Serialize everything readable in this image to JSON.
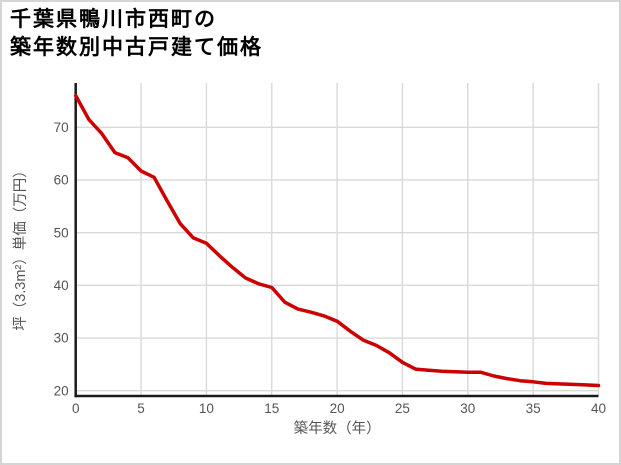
{
  "title": {
    "line1": "千葉県鴨川市西町の",
    "line2": "築年数別中古戸建て価格"
  },
  "chart_data": {
    "type": "line",
    "title": "千葉県鴨川市西町の築年数別中古戸建て価格",
    "xlabel": "築年数（年）",
    "ylabel": "坪（3.3m²）単価（万円）",
    "x": [
      0,
      1,
      2,
      3,
      4,
      5,
      6,
      7,
      8,
      9,
      10,
      11,
      12,
      13,
      14,
      15,
      16,
      17,
      18,
      19,
      20,
      21,
      22,
      23,
      24,
      25,
      26,
      27,
      28,
      29,
      30,
      31,
      32,
      33,
      34,
      35,
      36,
      37,
      38,
      39,
      40
    ],
    "values": [
      76,
      71.5,
      68.8,
      65.2,
      64.2,
      61.7,
      60.5,
      56,
      51.7,
      49,
      48,
      45.6,
      43.4,
      41.4,
      40.3,
      39.6,
      36.8,
      35.5,
      34.9,
      34.2,
      33.2,
      31.3,
      29.6,
      28.6,
      27.2,
      25.4,
      24.1,
      23.9,
      23.7,
      23.6,
      23.5,
      23.5,
      22.8,
      22.3,
      21.9,
      21.7,
      21.4,
      21.3,
      21.2,
      21.1,
      21
    ],
    "xlim": [
      0,
      40
    ],
    "ylim": [
      19,
      78.4
    ],
    "xticks": [
      0,
      5,
      10,
      15,
      20,
      25,
      30,
      35,
      40
    ],
    "yticks": [
      20,
      30,
      40,
      50,
      60,
      70
    ],
    "grid": true,
    "legend": "none",
    "line_color": "#cc0000",
    "axis_color": "#1a1a1a",
    "grid_color": "#d9d9d9",
    "tick_label_color": "#555555"
  }
}
